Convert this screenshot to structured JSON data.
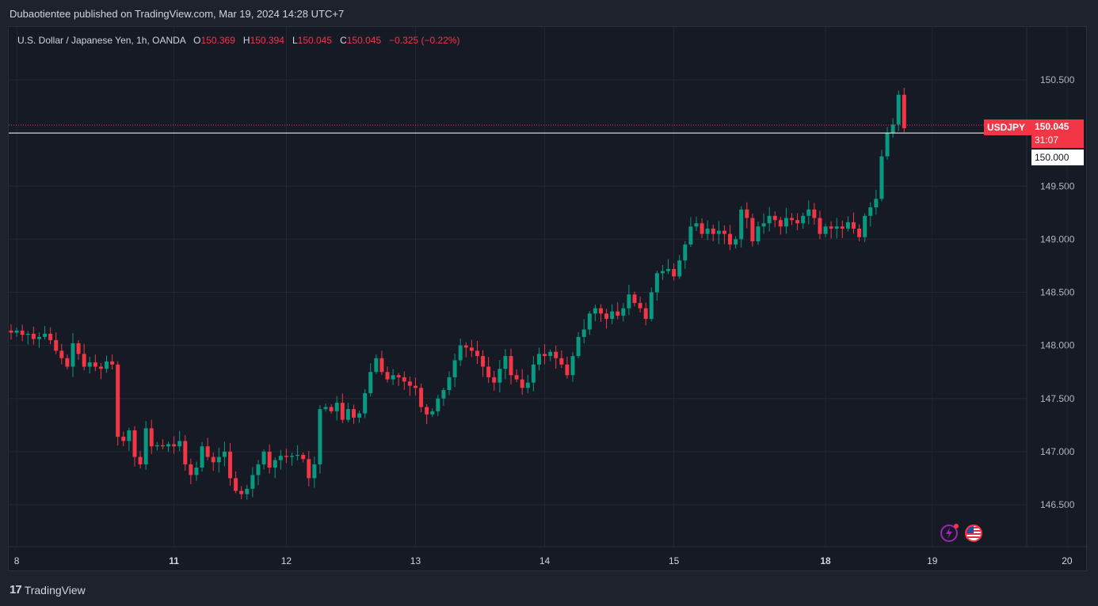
{
  "header": {
    "published": "Dubaotientee published on TradingView.com, Mar 19, 2024 14:28 UTC+7"
  },
  "legend": {
    "symbol": "U.S. Dollar / Japanese Yen, 1h, OANDA",
    "open_label": "O",
    "open": "150.369",
    "high_label": "H",
    "high": "150.394",
    "low_label": "L",
    "low": "150.045",
    "close_label": "C",
    "close": "150.045",
    "change": "−0.325 (−0.22%)"
  },
  "price_tags": {
    "symbol": "USDJPY",
    "price": "150.045",
    "countdown": "31:07",
    "level": "150.000"
  },
  "footer": {
    "brand": "TradingView"
  },
  "colors": {
    "up": "#089981",
    "down": "#f23645",
    "background": "#161a25",
    "grid": "#232632"
  },
  "icons": [
    "lightning-icon",
    "us-flag-icon"
  ],
  "chart_data": {
    "type": "candlestick",
    "symbol": "USDJPY",
    "interval": "1h",
    "y_ticks": [
      "150.500",
      "150.000",
      "149.500",
      "149.000",
      "148.500",
      "148.000",
      "147.500",
      "147.000",
      "146.500"
    ],
    "x_ticks": [
      "8",
      "11",
      "12",
      "13",
      "14",
      "15",
      "18",
      "19",
      "20"
    ],
    "ylim": [
      146.1,
      150.9
    ],
    "last_price": 150.045,
    "horizontal_line": 150.0,
    "close_series": [
      148.12,
      148.14,
      148.1,
      148.11,
      148.06,
      148.08,
      148.11,
      148.05,
      147.95,
      147.88,
      147.8,
      148.02,
      147.92,
      147.8,
      147.84,
      147.8,
      147.78,
      147.85,
      147.82,
      147.14,
      147.1,
      147.2,
      146.95,
      146.88,
      147.22,
      147.05,
      147.06,
      147.05,
      147.07,
      147.05,
      147.1,
      146.88,
      146.78,
      146.85,
      147.05,
      146.95,
      146.9,
      146.95,
      147.0,
      146.75,
      146.63,
      146.6,
      146.65,
      146.78,
      146.88,
      147.0,
      146.85,
      146.92,
      146.96,
      146.95,
      146.96,
      146.97,
      146.93,
      146.75,
      146.88,
      147.4,
      147.42,
      147.38,
      147.46,
      147.3,
      147.4,
      147.32,
      147.36,
      147.55,
      147.75,
      147.88,
      147.75,
      147.68,
      147.72,
      147.7,
      147.66,
      147.62,
      147.6,
      147.42,
      147.35,
      147.38,
      147.5,
      147.58,
      147.7,
      147.86,
      148.0,
      147.98,
      147.95,
      147.9,
      147.8,
      147.7,
      147.65,
      147.78,
      147.9,
      147.72,
      147.68,
      147.6,
      147.65,
      147.82,
      147.92,
      147.9,
      147.94,
      147.88,
      147.82,
      147.72,
      147.9,
      148.08,
      148.15,
      148.3,
      148.35,
      148.3,
      148.25,
      148.32,
      148.28,
      148.35,
      148.48,
      148.4,
      148.35,
      148.25,
      148.5,
      148.68,
      148.7,
      148.72,
      148.65,
      148.8,
      148.95,
      149.12,
      149.15,
      149.05,
      149.1,
      149.05,
      149.08,
      149.05,
      148.95,
      149.0,
      149.28,
      149.2,
      148.98,
      149.12,
      149.15,
      149.22,
      149.18,
      149.12,
      149.2,
      149.18,
      149.15,
      149.22,
      149.28,
      149.2,
      149.05,
      149.12,
      149.1,
      149.12,
      149.1,
      149.16,
      149.1,
      149.02,
      149.22,
      149.3,
      149.38,
      149.78,
      150.0,
      150.08,
      150.36,
      150.045
    ],
    "x_label_index": {
      "8": 1,
      "11": 29,
      "12": 49,
      "13": 72,
      "14": 95,
      "15": 118,
      "18": 145,
      "19": 164,
      "20": 188
    }
  }
}
